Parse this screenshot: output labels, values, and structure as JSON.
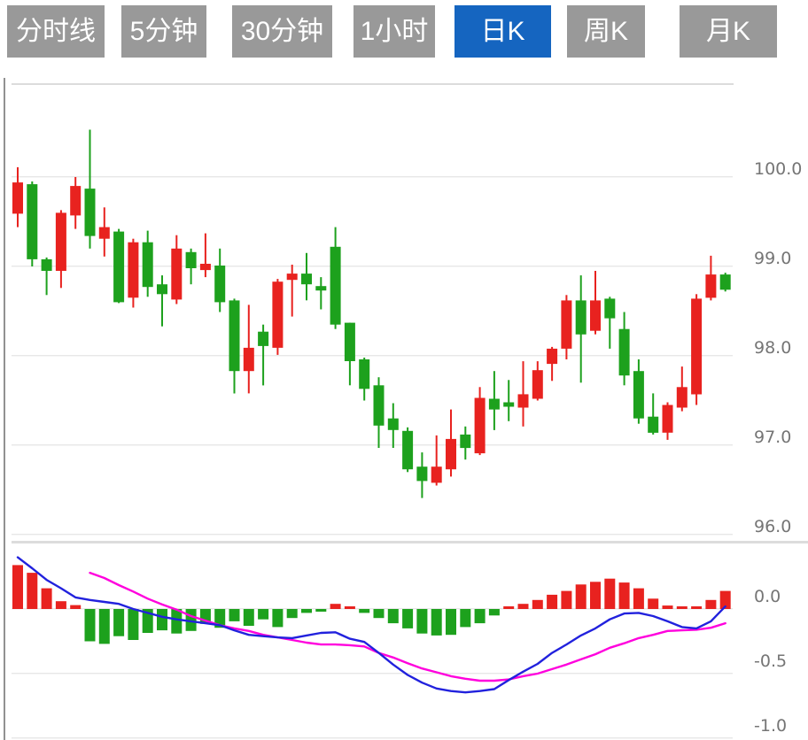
{
  "tabs": {
    "items": [
      {
        "label": "分时线",
        "active": false
      },
      {
        "label": "5分钟",
        "active": false
      },
      {
        "label": "30分钟",
        "active": false
      },
      {
        "label": "1小时",
        "active": false
      },
      {
        "label": "日K",
        "active": true
      },
      {
        "label": "周K",
        "active": false
      },
      {
        "label": "月K",
        "active": false
      }
    ]
  },
  "colors": {
    "background": "#ffffff",
    "tab_bg": "#999999",
    "tab_active_bg": "#1565c0",
    "tab_text": "#ffffff",
    "up": "#e8221f",
    "down": "#1da11d",
    "dif_line": "#2121dd",
    "dea_line": "#ff00dd",
    "grid": "#e7e7e7",
    "panel_border": "#dcdcdc",
    "left_border": "#919191",
    "axis_text": "#757575"
  },
  "chart_data": {
    "type": "candlestick",
    "title": "",
    "description": "Daily K-line price panel with MACD-style indicator panel (histogram + DIF/DEA lines)",
    "legend_position": "none",
    "grid": true,
    "price_axis": {
      "side": "right",
      "ticks": [
        100.0,
        99.0,
        98.0,
        97.0,
        96.0
      ],
      "tick_labels": [
        "100.0",
        "99.0",
        "98.0",
        "97.0",
        "96.0"
      ]
    },
    "indicator_axis": {
      "side": "right",
      "ticks": [
        0.0,
        -0.5,
        -1.0
      ],
      "tick_labels": [
        "0.0",
        "-0.5",
        "-1.0"
      ]
    },
    "candles_format": [
      "open",
      "high",
      "low",
      "close"
    ],
    "candles": [
      [
        99.59,
        100.11,
        99.44,
        99.94
      ],
      [
        99.92,
        99.95,
        99.0,
        99.08
      ],
      [
        99.08,
        99.1,
        98.68,
        98.95
      ],
      [
        98.95,
        99.63,
        98.76,
        99.6
      ],
      [
        99.57,
        100.0,
        99.42,
        99.9
      ],
      [
        99.87,
        100.53,
        99.2,
        99.34
      ],
      [
        99.31,
        99.66,
        99.11,
        99.44
      ],
      [
        99.39,
        99.42,
        98.59,
        98.6
      ],
      [
        98.65,
        99.31,
        98.54,
        99.27
      ],
      [
        99.27,
        99.4,
        98.66,
        98.77
      ],
      [
        98.8,
        98.9,
        98.33,
        98.69
      ],
      [
        98.63,
        99.35,
        98.58,
        99.2
      ],
      [
        99.16,
        99.2,
        98.8,
        98.98
      ],
      [
        98.96,
        99.37,
        98.88,
        99.03
      ],
      [
        99.01,
        99.2,
        98.49,
        98.6
      ],
      [
        98.62,
        98.64,
        97.58,
        97.83
      ],
      [
        97.83,
        98.57,
        97.58,
        98.09
      ],
      [
        98.27,
        98.35,
        97.67,
        98.11
      ],
      [
        98.09,
        98.86,
        98.01,
        98.83
      ],
      [
        98.85,
        99.02,
        98.44,
        98.92
      ],
      [
        98.92,
        99.15,
        98.62,
        98.8
      ],
      [
        98.78,
        98.88,
        98.52,
        98.73
      ],
      [
        99.22,
        99.44,
        98.3,
        98.35
      ],
      [
        98.37,
        98.37,
        97.67,
        97.94
      ],
      [
        97.96,
        97.98,
        97.5,
        97.63
      ],
      [
        97.67,
        97.76,
        96.97,
        97.22
      ],
      [
        97.3,
        97.47,
        96.97,
        97.17
      ],
      [
        97.16,
        97.2,
        96.7,
        96.73
      ],
      [
        96.76,
        96.92,
        96.41,
        96.6
      ],
      [
        96.58,
        97.11,
        96.55,
        96.76
      ],
      [
        96.73,
        97.4,
        96.65,
        97.07
      ],
      [
        97.12,
        97.21,
        96.84,
        96.97
      ],
      [
        96.91,
        97.65,
        96.89,
        97.53
      ],
      [
        97.52,
        97.83,
        97.17,
        97.4
      ],
      [
        97.48,
        97.73,
        97.27,
        97.43
      ],
      [
        97.42,
        97.94,
        97.21,
        97.57
      ],
      [
        97.52,
        97.94,
        97.5,
        97.84
      ],
      [
        97.91,
        98.1,
        97.72,
        98.08
      ],
      [
        98.08,
        98.68,
        97.96,
        98.62
      ],
      [
        98.62,
        98.9,
        97.7,
        98.24
      ],
      [
        98.28,
        98.95,
        98.24,
        98.62
      ],
      [
        98.64,
        98.66,
        98.08,
        98.42
      ],
      [
        98.3,
        98.49,
        97.67,
        97.78
      ],
      [
        97.83,
        97.96,
        97.24,
        97.3
      ],
      [
        97.32,
        97.58,
        97.12,
        97.14
      ],
      [
        97.14,
        97.48,
        97.06,
        97.45
      ],
      [
        97.42,
        97.88,
        97.38,
        97.65
      ],
      [
        97.57,
        98.69,
        97.45,
        98.64
      ],
      [
        98.65,
        99.12,
        98.62,
        98.91
      ],
      [
        98.91,
        98.93,
        98.72,
        98.74
      ]
    ],
    "macd_histogram": [
      0.34,
      0.28,
      0.16,
      0.06,
      0.03,
      -0.25,
      -0.27,
      -0.21,
      -0.24,
      -0.185,
      -0.165,
      -0.19,
      -0.17,
      -0.115,
      -0.145,
      -0.095,
      -0.13,
      -0.08,
      -0.14,
      -0.07,
      -0.03,
      -0.02,
      0.04,
      0.015,
      -0.03,
      -0.07,
      -0.11,
      -0.15,
      -0.19,
      -0.205,
      -0.2,
      -0.14,
      -0.11,
      -0.05,
      0.015,
      0.04,
      0.07,
      0.11,
      0.14,
      0.19,
      0.21,
      0.235,
      0.205,
      0.16,
      0.08,
      0.027,
      0.01,
      0.01,
      0.07,
      0.14
    ],
    "dif_line": [
      0.4,
      0.315,
      0.225,
      0.16,
      0.09,
      0.07,
      0.055,
      0.04,
      0.0,
      -0.03,
      -0.06,
      -0.08,
      -0.095,
      -0.11,
      -0.125,
      -0.165,
      -0.2,
      -0.21,
      -0.22,
      -0.225,
      -0.205,
      -0.185,
      -0.18,
      -0.23,
      -0.255,
      -0.34,
      -0.43,
      -0.51,
      -0.57,
      -0.615,
      -0.635,
      -0.645,
      -0.635,
      -0.62,
      -0.55,
      -0.485,
      -0.425,
      -0.34,
      -0.275,
      -0.205,
      -0.15,
      -0.08,
      -0.035,
      -0.03,
      -0.055,
      -0.095,
      -0.14,
      -0.15,
      -0.095,
      0.02
    ],
    "dea_line": [
      null,
      null,
      null,
      null,
      null,
      0.28,
      0.24,
      0.185,
      0.135,
      0.08,
      0.035,
      -0.005,
      -0.055,
      -0.09,
      -0.125,
      -0.15,
      -0.17,
      -0.2,
      -0.22,
      -0.24,
      -0.26,
      -0.275,
      -0.275,
      -0.28,
      -0.29,
      -0.34,
      -0.375,
      -0.42,
      -0.46,
      -0.49,
      -0.52,
      -0.54,
      -0.555,
      -0.555,
      -0.545,
      -0.52,
      -0.5,
      -0.465,
      -0.43,
      -0.39,
      -0.35,
      -0.3,
      -0.265,
      -0.225,
      -0.2,
      -0.17,
      -0.165,
      -0.16,
      -0.145,
      -0.11
    ]
  }
}
